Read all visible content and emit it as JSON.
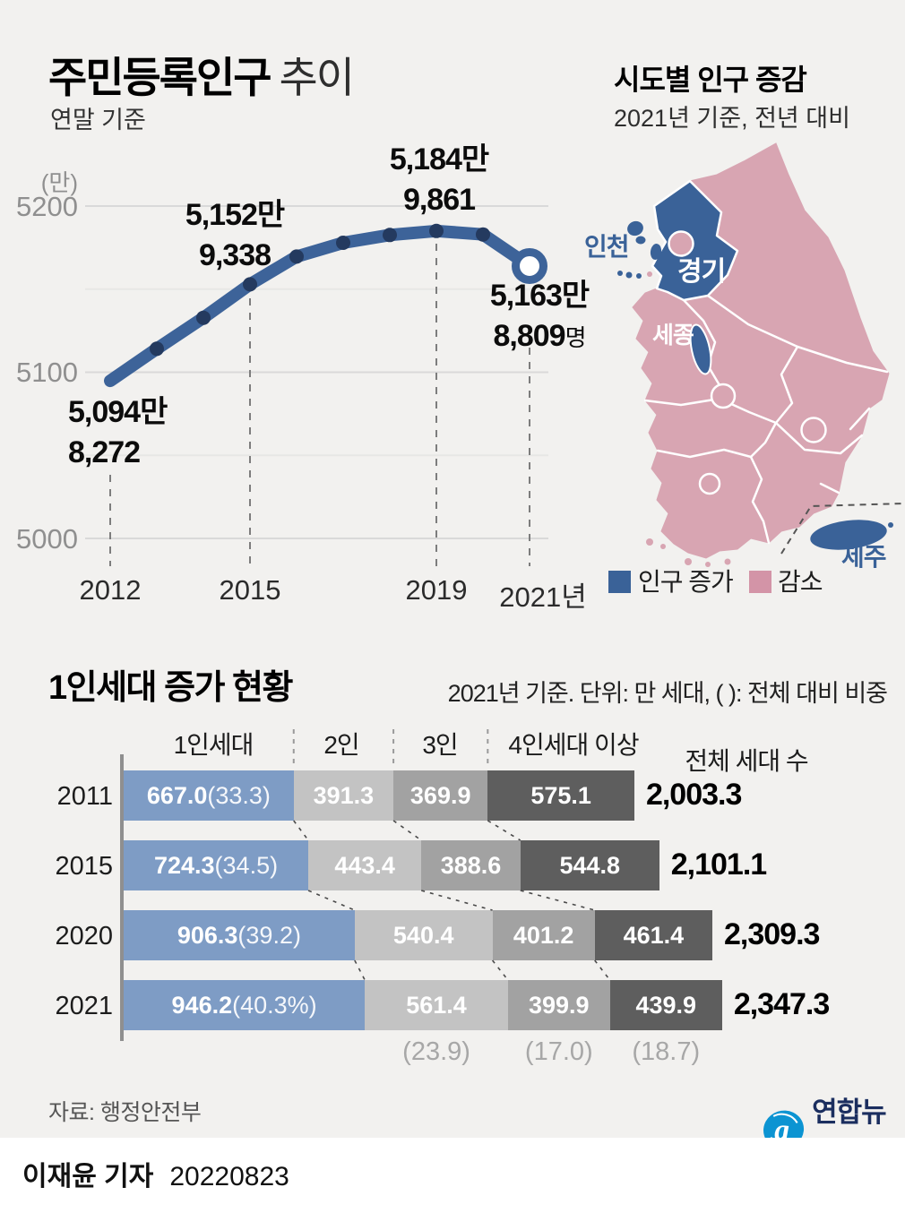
{
  "page": {
    "bg": "#f2f1ef"
  },
  "colors": {
    "line_blue": "#3d6399",
    "dot_navy": "#243a5f",
    "map_blue": "#3a6298",
    "map_pink": "#d8a5b2",
    "legend_pink": "#d394a7",
    "bar_blue": "#7e9cc5",
    "bar_gray_light": "#c3c3c3",
    "bar_gray_mid": "#a2a2a2",
    "bar_gray_dark": "#5e5e5e",
    "logo_blue": "#0c94d2",
    "logo_navy": "#1b2e5f"
  },
  "line_chart": {
    "title_bold": "주민등록인구",
    "title_light": "추이",
    "subtitle": "연말 기준",
    "unit_label": "(만)",
    "y_ticks": [
      "5200",
      "5100",
      "5000"
    ],
    "x_ticks": [
      "2012",
      "2015",
      "2019",
      "2021년"
    ],
    "labels": {
      "y2012": {
        "l1": "5,094만",
        "l2": "8,272"
      },
      "y2015": {
        "l1": "5,152만",
        "l2": "9,338"
      },
      "y2019": {
        "l1": "5,184만",
        "l2": "9,861"
      },
      "y2021": {
        "l1": "5,163만",
        "l2": "8,809",
        "suffix": "명"
      }
    }
  },
  "map": {
    "title": "시도별 인구 증감",
    "subtitle": "2021년 기준, 전년 대비",
    "regions": {
      "incheon": "인천",
      "gyeonggi": "경기",
      "sejong": "세종",
      "jeju": "제주"
    },
    "increase_regions": [
      "인천",
      "경기",
      "세종",
      "제주"
    ],
    "legend": {
      "increase": "인구 증가",
      "decrease": "감소"
    }
  },
  "household": {
    "title": "1인세대 증가 현황",
    "note": "2021년 기준. 단위: 만 세대, ( ): 전체 대비 비중",
    "headers": [
      "1인세대",
      "2인",
      "3인",
      "4인세대 이상",
      "전체 세대 수"
    ],
    "rows": [
      {
        "year": "2011",
        "segs": [
          {
            "num": "667.0",
            "paren": "(33.3)"
          },
          {
            "num": "391.3"
          },
          {
            "num": "369.9"
          },
          {
            "num": "575.1"
          }
        ],
        "total": "2,003.3"
      },
      {
        "year": "2015",
        "segs": [
          {
            "num": "724.3",
            "paren": "(34.5)"
          },
          {
            "num": "443.4"
          },
          {
            "num": "388.6"
          },
          {
            "num": "544.8"
          }
        ],
        "total": "2,101.1"
      },
      {
        "year": "2020",
        "segs": [
          {
            "num": "906.3",
            "paren": "(39.2)"
          },
          {
            "num": "540.4"
          },
          {
            "num": "401.2"
          },
          {
            "num": "461.4"
          }
        ],
        "total": "2,309.3"
      },
      {
        "year": "2021",
        "segs": [
          {
            "num": "946.2",
            "paren": "(40.3%)"
          },
          {
            "num": "561.4"
          },
          {
            "num": "399.9"
          },
          {
            "num": "439.9"
          }
        ],
        "total": "2,347.3"
      }
    ],
    "pct_row": [
      "(23.9)",
      "(17.0)",
      "(18.7)"
    ]
  },
  "footer": {
    "source": "자료: 행정안전부",
    "agency": "연합뉴스",
    "reporter": "이재윤 기자",
    "date": "20220823"
  },
  "chart_data": [
    {
      "type": "line",
      "title": "주민등록인구 추이 (연말 기준)",
      "ylabel": "만",
      "x": [
        2012,
        2013,
        2014,
        2015,
        2016,
        2017,
        2018,
        2019,
        2020,
        2021
      ],
      "values": [
        5094.8,
        5114.1,
        5132.8,
        5152.9,
        5169.6,
        5177.9,
        5182.6,
        5185.0,
        5182.9,
        5163.9
      ],
      "point_labels": {
        "2012": "5,094만 8,272",
        "2015": "5,152만 9,338",
        "2019": "5,184만 9,861",
        "2021": "5,163만 8,809명"
      },
      "ylim": [
        5000,
        5243
      ],
      "yticks": [
        5200,
        5100,
        5000
      ],
      "yticks_minor": [
        5150,
        5050
      ],
      "xticks": [
        "2012",
        "2015",
        "2019",
        "2021년"
      ],
      "grid": true,
      "dashed_years": [
        2012,
        2015,
        2019,
        2021
      ],
      "dash_tops": [
        380,
        183,
        122,
        238
      ],
      "dot_years": [
        2013,
        2014,
        2015,
        2016,
        2017,
        2018,
        2019,
        2020
      ]
    },
    {
      "type": "bar",
      "stacked": true,
      "orientation": "horizontal",
      "title": "1인세대 증가 현황",
      "unit": "만 세대",
      "categories": [
        "2011",
        "2015",
        "2020",
        "2021"
      ],
      "series": [
        {
          "name": "1인세대",
          "values": [
            667.0,
            724.3,
            906.3,
            946.2
          ],
          "color": "#7e9cc5"
        },
        {
          "name": "2인",
          "values": [
            391.3,
            443.4,
            540.4,
            561.4
          ],
          "color": "#c3c3c3"
        },
        {
          "name": "3인",
          "values": [
            369.9,
            388.6,
            401.2,
            399.9
          ],
          "color": "#a2a2a2"
        },
        {
          "name": "4인세대 이상",
          "values": [
            575.1,
            544.8,
            461.4,
            439.9
          ],
          "color": "#5e5e5e"
        }
      ],
      "totals": [
        2003.3,
        2101.1,
        2309.3,
        2347.3
      ],
      "one_person_share_pct": [
        33.3,
        34.5,
        39.2,
        40.3
      ],
      "share_pct_2021": {
        "2인": 23.9,
        "3인": 17.0,
        "4인세대 이상": 18.7
      }
    }
  ]
}
